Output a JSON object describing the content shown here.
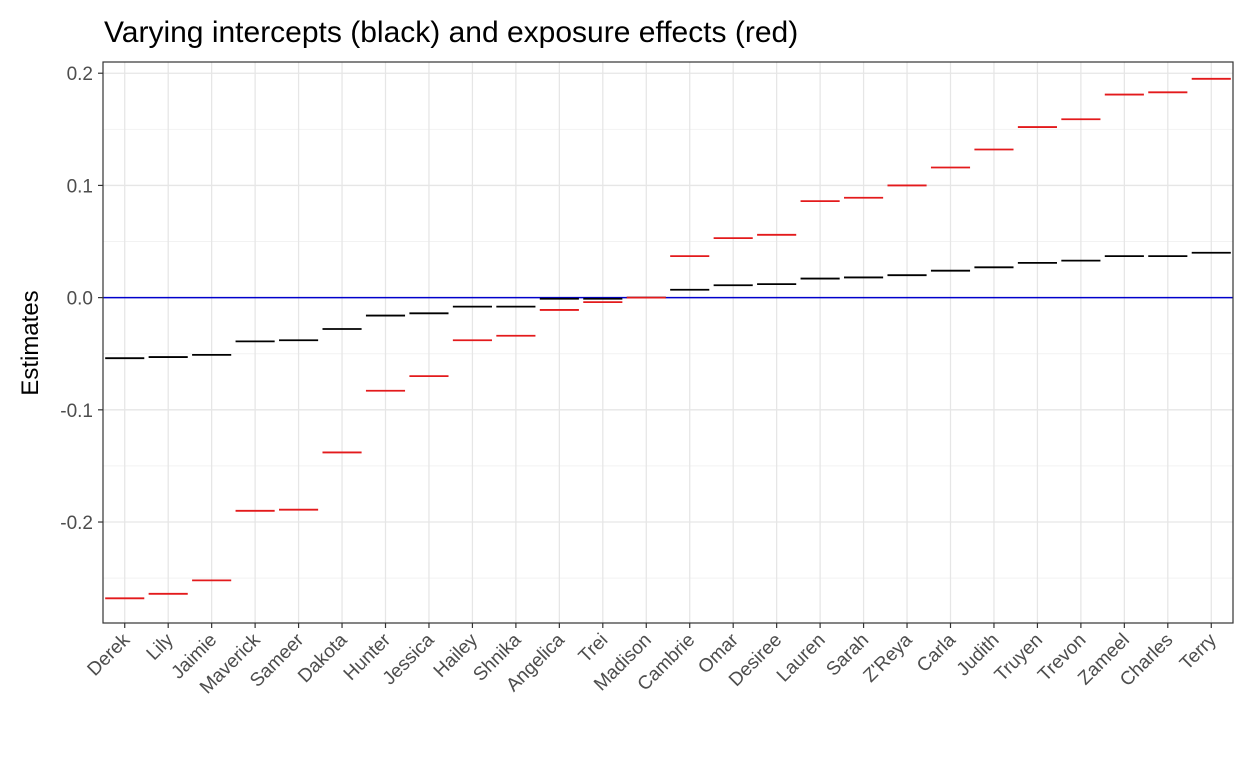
{
  "chart_data": {
    "type": "scatter",
    "marker": "horizontal-dash",
    "title": "Varying intercepts (black) and exposure effects (red)",
    "xlabel": "",
    "ylabel": "Estimates",
    "ylim": [
      -0.29,
      0.21
    ],
    "y_ticks": [
      -0.2,
      -0.1,
      0.0,
      0.1,
      0.2
    ],
    "y_tick_labels": [
      "-0.2",
      "-0.1",
      "0.0",
      "0.1",
      "0.2"
    ],
    "grid": true,
    "legend": "none",
    "reference_line": {
      "y": 0,
      "color": "#0000cc"
    },
    "categories": [
      "Derek",
      "Lily",
      "Jaimie",
      "Maverick",
      "Sameer",
      "Dakota",
      "Hunter",
      "Jessica",
      "Hailey",
      "Shnika",
      "Angelica",
      "Trei",
      "Madison",
      "Cambrie",
      "Omar",
      "Desiree",
      "Lauren",
      "Sarah",
      "Z'Reya",
      "Carla",
      "Judith",
      "Truyen",
      "Trevon",
      "Zameel",
      "Charles",
      "Terry"
    ],
    "series": [
      {
        "color": "#000000",
        "values": [
          -0.054,
          -0.053,
          -0.051,
          -0.039,
          -0.038,
          -0.028,
          -0.016,
          -0.014,
          -0.008,
          -0.008,
          -0.001,
          -0.001,
          0.0,
          0.007,
          0.011,
          0.012,
          0.017,
          0.018,
          0.02,
          0.024,
          0.027,
          0.031,
          0.033,
          0.037,
          0.037,
          0.04
        ]
      },
      {
        "color": "#e31a1c",
        "values": [
          -0.268,
          -0.264,
          -0.252,
          -0.19,
          -0.189,
          -0.138,
          -0.083,
          -0.07,
          -0.038,
          -0.034,
          -0.011,
          -0.004,
          0.0,
          0.037,
          0.053,
          0.056,
          0.086,
          0.089,
          0.1,
          0.116,
          0.132,
          0.152,
          0.159,
          0.181,
          0.183,
          0.195
        ]
      }
    ]
  }
}
